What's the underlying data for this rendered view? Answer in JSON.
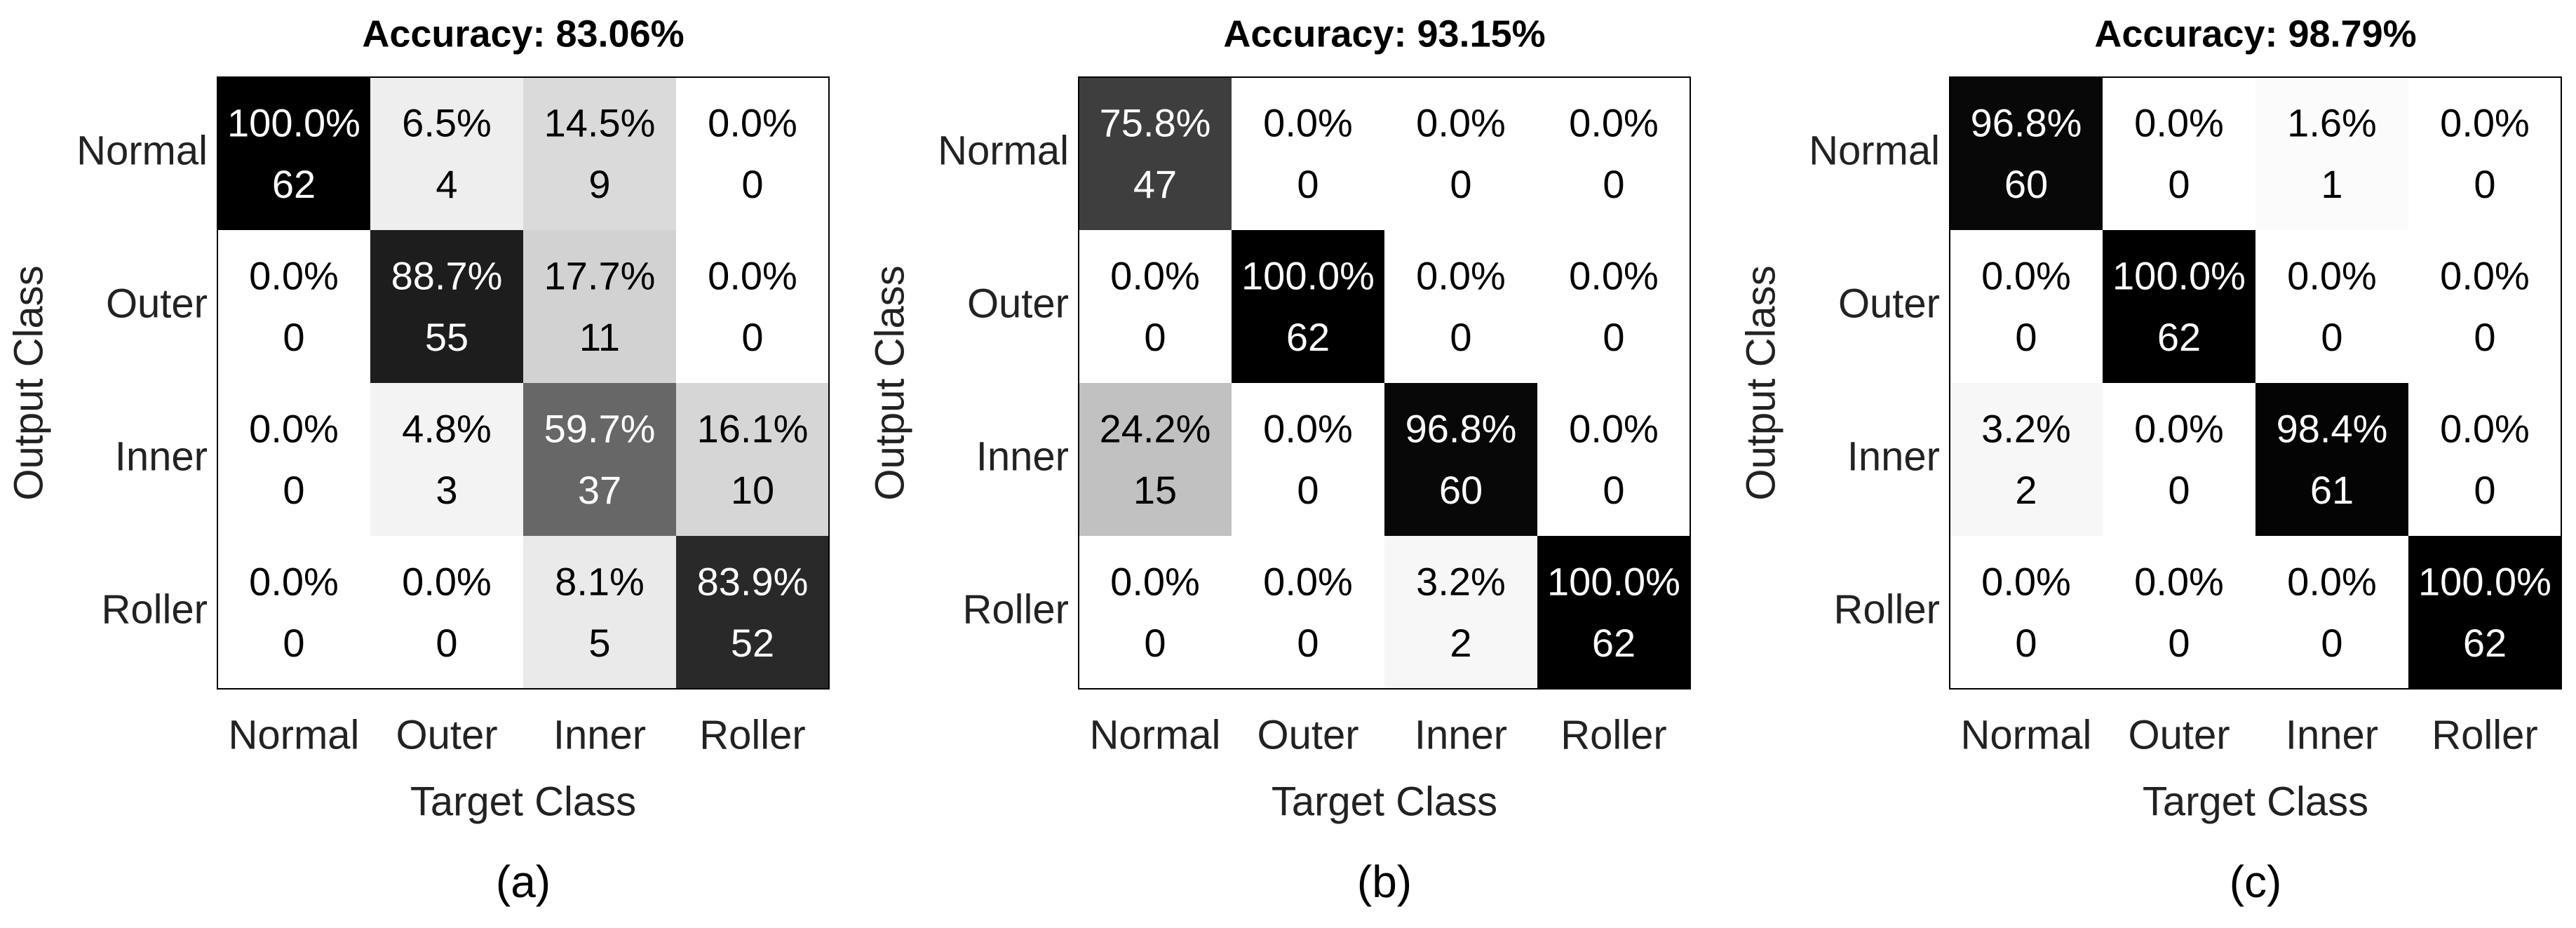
{
  "chart_data": [
    {
      "type": "heatmap",
      "title": "Accuracy: 83.06%",
      "xlabel": "Target Class",
      "ylabel": "Output Class",
      "x_categories": [
        "Normal",
        "Outer",
        "Inner",
        "Roller"
      ],
      "y_categories": [
        "Normal",
        "Outer",
        "Inner",
        "Roller"
      ],
      "percent": [
        [
          "100.0%",
          "6.5%",
          "14.5%",
          "0.0%"
        ],
        [
          "0.0%",
          "88.7%",
          "17.7%",
          "0.0%"
        ],
        [
          "0.0%",
          "4.8%",
          "59.7%",
          "16.1%"
        ],
        [
          "0.0%",
          "0.0%",
          "8.1%",
          "83.9%"
        ]
      ],
      "counts": [
        [
          "62",
          "4",
          "9",
          "0"
        ],
        [
          "0",
          "55",
          "11",
          "0"
        ],
        [
          "0",
          "3",
          "37",
          "10"
        ],
        [
          "0",
          "0",
          "5",
          "52"
        ]
      ],
      "values": [
        [
          100.0,
          6.5,
          14.5,
          0.0
        ],
        [
          0.0,
          88.7,
          17.7,
          0.0
        ],
        [
          0.0,
          4.8,
          59.7,
          16.1
        ],
        [
          0.0,
          0.0,
          8.1,
          83.9
        ]
      ],
      "colormap": "grayscale (white = 0%, black = 100%)",
      "caption": "(a)"
    },
    {
      "type": "heatmap",
      "title": "Accuracy: 93.15%",
      "xlabel": "Target Class",
      "ylabel": "Output Class",
      "x_categories": [
        "Normal",
        "Outer",
        "Inner",
        "Roller"
      ],
      "y_categories": [
        "Normal",
        "Outer",
        "Inner",
        "Roller"
      ],
      "percent": [
        [
          "75.8%",
          "0.0%",
          "0.0%",
          "0.0%"
        ],
        [
          "0.0%",
          "100.0%",
          "0.0%",
          "0.0%"
        ],
        [
          "24.2%",
          "0.0%",
          "96.8%",
          "0.0%"
        ],
        [
          "0.0%",
          "0.0%",
          "3.2%",
          "100.0%"
        ]
      ],
      "counts": [
        [
          "47",
          "0",
          "0",
          "0"
        ],
        [
          "0",
          "62",
          "0",
          "0"
        ],
        [
          "15",
          "0",
          "60",
          "0"
        ],
        [
          "0",
          "0",
          "2",
          "62"
        ]
      ],
      "values": [
        [
          75.8,
          0.0,
          0.0,
          0.0
        ],
        [
          0.0,
          100.0,
          0.0,
          0.0
        ],
        [
          24.2,
          0.0,
          96.8,
          0.0
        ],
        [
          0.0,
          0.0,
          3.2,
          100.0
        ]
      ],
      "colormap": "grayscale (white = 0%, black = 100%)",
      "caption": "(b)"
    },
    {
      "type": "heatmap",
      "title": "Accuracy: 98.79%",
      "xlabel": "Target Class",
      "ylabel": "Output Class",
      "x_categories": [
        "Normal",
        "Outer",
        "Inner",
        "Roller"
      ],
      "y_categories": [
        "Normal",
        "Outer",
        "Inner",
        "Roller"
      ],
      "percent": [
        [
          "96.8%",
          "0.0%",
          "1.6%",
          "0.0%"
        ],
        [
          "0.0%",
          "100.0%",
          "0.0%",
          "0.0%"
        ],
        [
          "3.2%",
          "0.0%",
          "98.4%",
          "0.0%"
        ],
        [
          "0.0%",
          "0.0%",
          "0.0%",
          "100.0%"
        ]
      ],
      "counts": [
        [
          "60",
          "0",
          "1",
          "0"
        ],
        [
          "0",
          "62",
          "0",
          "0"
        ],
        [
          "2",
          "0",
          "61",
          "0"
        ],
        [
          "0",
          "0",
          "0",
          "62"
        ]
      ],
      "values": [
        [
          96.8,
          0.0,
          1.6,
          0.0
        ],
        [
          0.0,
          100.0,
          0.0,
          0.0
        ],
        [
          3.2,
          0.0,
          98.4,
          0.0
        ],
        [
          0.0,
          0.0,
          0.0,
          100.0
        ]
      ],
      "colormap": "grayscale (white = 0%, black = 100%)",
      "caption": "(c)"
    }
  ]
}
